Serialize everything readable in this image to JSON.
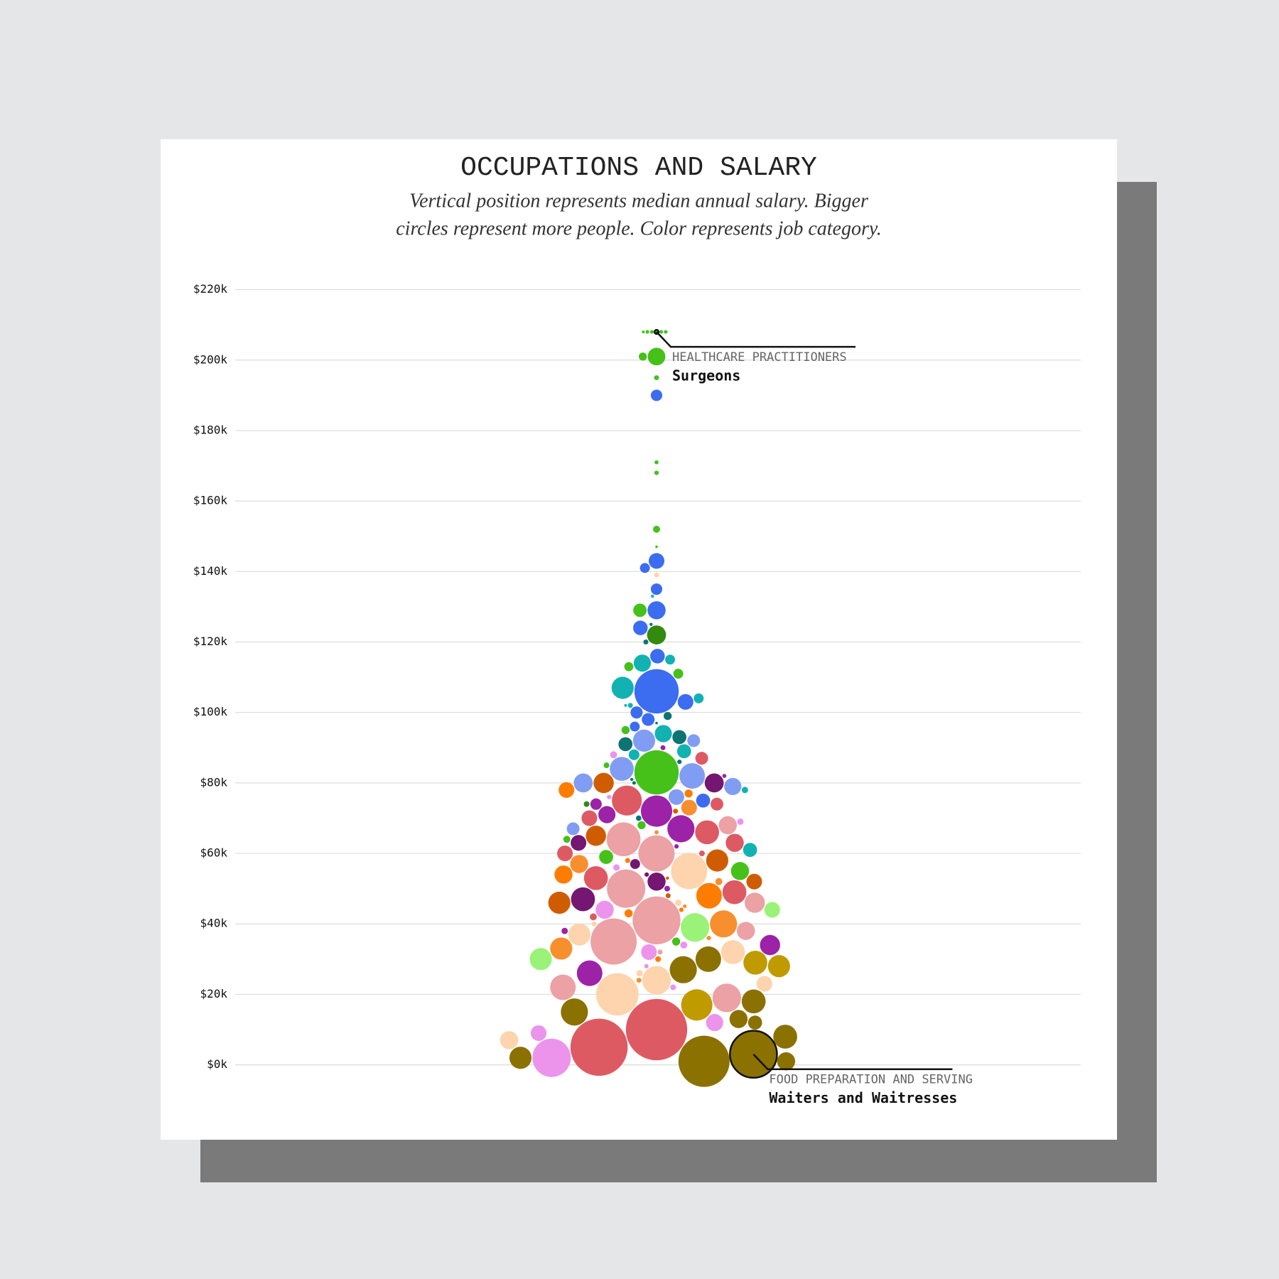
{
  "chart_data": {
    "type": "beeswarm",
    "title": "OCCUPATIONS AND SALARY",
    "subtitle": [
      "Vertical position represents median annual salary. Bigger",
      "circles represent more people. Color represents job category."
    ],
    "ylim": [
      -15000,
      230000
    ],
    "yticks": [
      {
        "value": 0,
        "label": "$0k"
      },
      {
        "value": 20000,
        "label": "$20k"
      },
      {
        "value": 40000,
        "label": "$40k"
      },
      {
        "value": 60000,
        "label": "$60k"
      },
      {
        "value": 80000,
        "label": "$80k"
      },
      {
        "value": 100000,
        "label": "$100k"
      },
      {
        "value": 120000,
        "label": "$120k"
      },
      {
        "value": 140000,
        "label": "$140k"
      },
      {
        "value": 160000,
        "label": "$160k"
      },
      {
        "value": 180000,
        "label": "$180k"
      },
      {
        "value": 200000,
        "label": "$200k"
      },
      {
        "value": 220000,
        "label": "$220k"
      }
    ],
    "grid": true,
    "points": [
      {
        "value": 208000,
        "size": 8,
        "color": "#45c11a"
      },
      {
        "value": 208000,
        "size": 8,
        "color": "#45c11a"
      },
      {
        "value": 208000,
        "size": 8,
        "color": "#45c11a"
      },
      {
        "value": 208000,
        "size": 10,
        "color": "#45c11a",
        "category": "HEALTHCARE PRACTITIONERS",
        "label": "Surgeons"
      },
      {
        "value": 208000,
        "size": 8,
        "color": "#45c11a"
      },
      {
        "value": 208000,
        "size": 5,
        "color": "#45c11a"
      },
      {
        "value": 201000,
        "size": 190,
        "color": "#45c11a"
      },
      {
        "value": 201000,
        "size": 40,
        "color": "#45c11a"
      },
      {
        "value": 195000,
        "size": 15,
        "color": "#45c11a"
      },
      {
        "value": 190000,
        "size": 80,
        "color": "#3c6cf0"
      },
      {
        "value": 171000,
        "size": 10,
        "color": "#45c11a"
      },
      {
        "value": 168000,
        "size": 12,
        "color": "#45c11a"
      },
      {
        "value": 152000,
        "size": 30,
        "color": "#45c11a"
      },
      {
        "value": 147000,
        "size": 4,
        "color": "#45c11a"
      },
      {
        "value": 143000,
        "size": 150,
        "color": "#3c6cf0"
      },
      {
        "value": 141000,
        "size": 60,
        "color": "#3c6cf0"
      },
      {
        "value": 139000,
        "size": 15,
        "color": "#fdd4ad"
      },
      {
        "value": 135000,
        "size": 80,
        "color": "#3c6cf0"
      },
      {
        "value": 133000,
        "size": 6,
        "color": "#12b2b2"
      },
      {
        "value": 129000,
        "size": 200,
        "color": "#3c6cf0"
      },
      {
        "value": 129000,
        "size": 110,
        "color": "#45c11a"
      },
      {
        "value": 125000,
        "size": 6,
        "color": "#0d7373"
      },
      {
        "value": 124000,
        "size": 130,
        "color": "#3c6cf0"
      },
      {
        "value": 122000,
        "size": 220,
        "color": "#338a0e"
      },
      {
        "value": 120000,
        "size": 15,
        "color": "#0d7373"
      },
      {
        "value": 116000,
        "size": 130,
        "color": "#3c6cf0"
      },
      {
        "value": 114000,
        "size": 180,
        "color": "#12b2b2"
      },
      {
        "value": 115000,
        "size": 60,
        "color": "#12b2b2"
      },
      {
        "value": 113000,
        "size": 50,
        "color": "#45c11a"
      },
      {
        "value": 111000,
        "size": 60,
        "color": "#45c11a"
      },
      {
        "value": 106000,
        "size": 1200,
        "color": "#3c6cf0"
      },
      {
        "value": 107000,
        "size": 300,
        "color": "#12b2b2"
      },
      {
        "value": 104000,
        "size": 60,
        "color": "#12b2b2"
      },
      {
        "value": 103000,
        "size": 150,
        "color": "#3c6cf0"
      },
      {
        "value": 102000,
        "size": 15,
        "color": "#12b2b2"
      },
      {
        "value": 100000,
        "size": 90,
        "color": "#3c6cf0"
      },
      {
        "value": 99000,
        "size": 40,
        "color": "#0d7373"
      },
      {
        "value": 98000,
        "size": 100,
        "color": "#3c6cf0"
      },
      {
        "value": 97000,
        "size": 4,
        "color": "#0d7373"
      },
      {
        "value": 96000,
        "size": 60,
        "color": "#3c6cf0"
      },
      {
        "value": 95000,
        "size": 40,
        "color": "#45c11a"
      },
      {
        "value": 94000,
        "size": 180,
        "color": "#12b2b2"
      },
      {
        "value": 93000,
        "size": 120,
        "color": "#0d7373"
      },
      {
        "value": 92000,
        "size": 300,
        "color": "#819df3"
      },
      {
        "value": 92000,
        "size": 100,
        "color": "#819df3"
      },
      {
        "value": 91000,
        "size": 120,
        "color": "#0d7373"
      },
      {
        "value": 89000,
        "size": 120,
        "color": "#12b2b2"
      },
      {
        "value": 88000,
        "size": 70,
        "color": "#12b2b2"
      },
      {
        "value": 87000,
        "size": 100,
        "color": "#de5a63"
      },
      {
        "value": 83000,
        "size": 1200,
        "color": "#45c11a"
      },
      {
        "value": 84000,
        "size": 350,
        "color": "#819df3"
      },
      {
        "value": 82000,
        "size": 400,
        "color": "#819df3"
      },
      {
        "value": 80000,
        "size": 220,
        "color": "#741672"
      },
      {
        "value": 80000,
        "size": 220,
        "color": "#819df3"
      },
      {
        "value": 79000,
        "size": 180,
        "color": "#819df3"
      },
      {
        "value": 78000,
        "size": 150,
        "color": "#ff7c00"
      },
      {
        "value": 80000,
        "size": 250,
        "color": "#d05c02"
      },
      {
        "value": 76000,
        "size": 150,
        "color": "#819df3"
      },
      {
        "value": 75000,
        "size": 550,
        "color": "#de5a63"
      },
      {
        "value": 75000,
        "size": 120,
        "color": "#3c6cf0"
      },
      {
        "value": 74000,
        "size": 80,
        "color": "#9c22a8"
      },
      {
        "value": 74000,
        "size": 100,
        "color": "#de5a63"
      },
      {
        "value": 73000,
        "size": 150,
        "color": "#f88f2e"
      },
      {
        "value": 72000,
        "size": 600,
        "color": "#9c22a8"
      },
      {
        "value": 71000,
        "size": 180,
        "color": "#9c22a8"
      },
      {
        "value": 70000,
        "size": 150,
        "color": "#de5a63"
      },
      {
        "value": 68000,
        "size": 200,
        "color": "#eca1a5"
      },
      {
        "value": 67000,
        "size": 450,
        "color": "#9c22a8"
      },
      {
        "value": 66000,
        "size": 350,
        "color": "#de5a63"
      },
      {
        "value": 67000,
        "size": 100,
        "color": "#819df3"
      },
      {
        "value": 65000,
        "size": 250,
        "color": "#d05c02"
      },
      {
        "value": 64000,
        "size": 700,
        "color": "#eca1a5"
      },
      {
        "value": 63000,
        "size": 150,
        "color": "#741672"
      },
      {
        "value": 63000,
        "size": 200,
        "color": "#de5a63"
      },
      {
        "value": 61000,
        "size": 120,
        "color": "#12b2b2"
      },
      {
        "value": 60000,
        "size": 800,
        "color": "#eca1a5"
      },
      {
        "value": 60000,
        "size": 150,
        "color": "#de5a63"
      },
      {
        "value": 59000,
        "size": 120,
        "color": "#45c11a"
      },
      {
        "value": 58000,
        "size": 300,
        "color": "#d05c02"
      },
      {
        "value": 57000,
        "size": 200,
        "color": "#f88f2e"
      },
      {
        "value": 55000,
        "size": 800,
        "color": "#fdd4ad"
      },
      {
        "value": 55000,
        "size": 200,
        "color": "#45c11a"
      },
      {
        "value": 54000,
        "size": 200,
        "color": "#ff7c00"
      },
      {
        "value": 53000,
        "size": 350,
        "color": "#de5a63"
      },
      {
        "value": 52000,
        "size": 200,
        "color": "#741672"
      },
      {
        "value": 52000,
        "size": 150,
        "color": "#d05c02"
      },
      {
        "value": 50000,
        "size": 900,
        "color": "#eca1a5"
      },
      {
        "value": 49000,
        "size": 350,
        "color": "#de5a63"
      },
      {
        "value": 48000,
        "size": 400,
        "color": "#ff7c00"
      },
      {
        "value": 47000,
        "size": 350,
        "color": "#741672"
      },
      {
        "value": 46000,
        "size": 250,
        "color": "#eca1a5"
      },
      {
        "value": 46000,
        "size": 300,
        "color": "#d05c02"
      },
      {
        "value": 44000,
        "size": 150,
        "color": "#9af378"
      },
      {
        "value": 44000,
        "size": 200,
        "color": "#ec93ec"
      },
      {
        "value": 41000,
        "size": 1400,
        "color": "#eca1a5"
      },
      {
        "value": 40000,
        "size": 450,
        "color": "#f88f2e"
      },
      {
        "value": 39000,
        "size": 500,
        "color": "#9af378"
      },
      {
        "value": 38000,
        "size": 200,
        "color": "#eca1a5"
      },
      {
        "value": 37000,
        "size": 300,
        "color": "#fdd4ad"
      },
      {
        "value": 35000,
        "size": 1300,
        "color": "#eca1a5"
      },
      {
        "value": 34000,
        "size": 250,
        "color": "#9c22a8"
      },
      {
        "value": 33000,
        "size": 300,
        "color": "#f88f2e"
      },
      {
        "value": 32000,
        "size": 350,
        "color": "#fdd4ad"
      },
      {
        "value": 32000,
        "size": 150,
        "color": "#ec93ec"
      },
      {
        "value": 30000,
        "size": 300,
        "color": "#9af378"
      },
      {
        "value": 30000,
        "size": 400,
        "color": "#8b7100"
      },
      {
        "value": 29000,
        "size": 350,
        "color": "#bf9b00"
      },
      {
        "value": 28000,
        "size": 300,
        "color": "#bf9b00"
      },
      {
        "value": 27000,
        "size": 450,
        "color": "#8b7100"
      },
      {
        "value": 26000,
        "size": 400,
        "color": "#9c22a8"
      },
      {
        "value": 24000,
        "size": 500,
        "color": "#fdd4ad"
      },
      {
        "value": 23000,
        "size": 150,
        "color": "#fdd4ad"
      },
      {
        "value": 22000,
        "size": 400,
        "color": "#eca1a5"
      },
      {
        "value": 20000,
        "size": 1100,
        "color": "#fdd4ad"
      },
      {
        "value": 19000,
        "size": 500,
        "color": "#eca1a5"
      },
      {
        "value": 18000,
        "size": 350,
        "color": "#8b7100"
      },
      {
        "value": 17000,
        "size": 600,
        "color": "#bf9b00"
      },
      {
        "value": 15000,
        "size": 450,
        "color": "#8b7100"
      },
      {
        "value": 13000,
        "size": 200,
        "color": "#8b7100"
      },
      {
        "value": 12000,
        "size": 120,
        "color": "#8b7100"
      },
      {
        "value": 10000,
        "size": 2300,
        "color": "#de5a63"
      },
      {
        "value": 8000,
        "size": 350,
        "color": "#8b7100"
      },
      {
        "value": 7000,
        "size": 200,
        "color": "#fdd4ad"
      },
      {
        "value": 5000,
        "size": 2000,
        "color": "#de5a63"
      },
      {
        "value": 3000,
        "size": 1350,
        "color": "#8b7100",
        "category": "FOOD PREPARATION AND SERVING",
        "label": "Waiters and Waitresses"
      },
      {
        "value": 2000,
        "size": 300,
        "color": "#8b7100"
      },
      {
        "value": 1000,
        "size": 200,
        "color": "#8b7100"
      },
      {
        "value": 2000,
        "size": 900,
        "color": "#ec93ec"
      },
      {
        "value": 1000,
        "size": 1600,
        "color": "#8b7100"
      },
      {
        "value": 9000,
        "size": 150,
        "color": "#ec93ec"
      },
      {
        "value": 12000,
        "size": 180,
        "color": "#ec93ec"
      },
      {
        "value": 90000,
        "size": 15,
        "color": "#9c22a8"
      },
      {
        "value": 86000,
        "size": 12,
        "color": "#0d7373"
      },
      {
        "value": 85000,
        "size": 20,
        "color": "#45c11a"
      },
      {
        "value": 82000,
        "size": 10,
        "color": "#9c22a8"
      },
      {
        "value": 80000,
        "size": 8,
        "color": "#0d7373"
      },
      {
        "value": 78000,
        "size": 25,
        "color": "#12b2b2"
      },
      {
        "value": 76000,
        "size": 12,
        "color": "#ec93ec"
      },
      {
        "value": 74000,
        "size": 20,
        "color": "#338a0e"
      },
      {
        "value": 72000,
        "size": 15,
        "color": "#d05c02"
      },
      {
        "value": 70000,
        "size": 18,
        "color": "#0d7373"
      },
      {
        "value": 69000,
        "size": 25,
        "color": "#ec93ec"
      },
      {
        "value": 66000,
        "size": 10,
        "color": "#f88f2e"
      },
      {
        "value": 64000,
        "size": 30,
        "color": "#45c11a"
      },
      {
        "value": 62000,
        "size": 12,
        "color": "#9c22a8"
      },
      {
        "value": 60000,
        "size": 20,
        "color": "#de5a63"
      },
      {
        "value": 58000,
        "size": 15,
        "color": "#ff7c00"
      },
      {
        "value": 56000,
        "size": 25,
        "color": "#ec93ec"
      },
      {
        "value": 54000,
        "size": 12,
        "color": "#741672"
      },
      {
        "value": 52000,
        "size": 30,
        "color": "#f88f2e"
      },
      {
        "value": 50000,
        "size": 20,
        "color": "#9c22a8"
      },
      {
        "value": 48000,
        "size": 15,
        "color": "#d05c02"
      },
      {
        "value": 46000,
        "size": 25,
        "color": "#fdd4ad"
      },
      {
        "value": 44000,
        "size": 12,
        "color": "#ff7c00"
      },
      {
        "value": 42000,
        "size": 30,
        "color": "#de5a63"
      },
      {
        "value": 40000,
        "size": 15,
        "color": "#fdd4ad"
      },
      {
        "value": 38000,
        "size": 25,
        "color": "#9c22a8"
      },
      {
        "value": 36000,
        "size": 12,
        "color": "#f88f2e"
      },
      {
        "value": 34000,
        "size": 30,
        "color": "#ec93ec"
      },
      {
        "value": 32000,
        "size": 15,
        "color": "#eca1a5"
      },
      {
        "value": 30000,
        "size": 20,
        "color": "#ff7c00"
      },
      {
        "value": 28000,
        "size": 12,
        "color": "#ec93ec"
      },
      {
        "value": 26000,
        "size": 25,
        "color": "#fdd4ad"
      },
      {
        "value": 24000,
        "size": 15,
        "color": "#f88f2e"
      },
      {
        "value": 22000,
        "size": 20,
        "color": "#ec93ec"
      },
      {
        "value": 45000,
        "size": 8,
        "color": "#f88f2e"
      },
      {
        "value": 53000,
        "size": 6,
        "color": "#d05c02"
      },
      {
        "value": 102000,
        "size": 5,
        "color": "#12b2b2"
      },
      {
        "value": 81000,
        "size": 6,
        "color": "#0d7373"
      },
      {
        "value": 35000,
        "size": 40,
        "color": "#45c11a"
      },
      {
        "value": 43000,
        "size": 40,
        "color": "#ff7c00"
      },
      {
        "value": 57000,
        "size": 60,
        "color": "#741672"
      },
      {
        "value": 68000,
        "size": 40,
        "color": "#45c11a"
      },
      {
        "value": 77000,
        "size": 40,
        "color": "#ff7c00"
      },
      {
        "value": 88000,
        "size": 30,
        "color": "#ec93ec"
      }
    ]
  }
}
